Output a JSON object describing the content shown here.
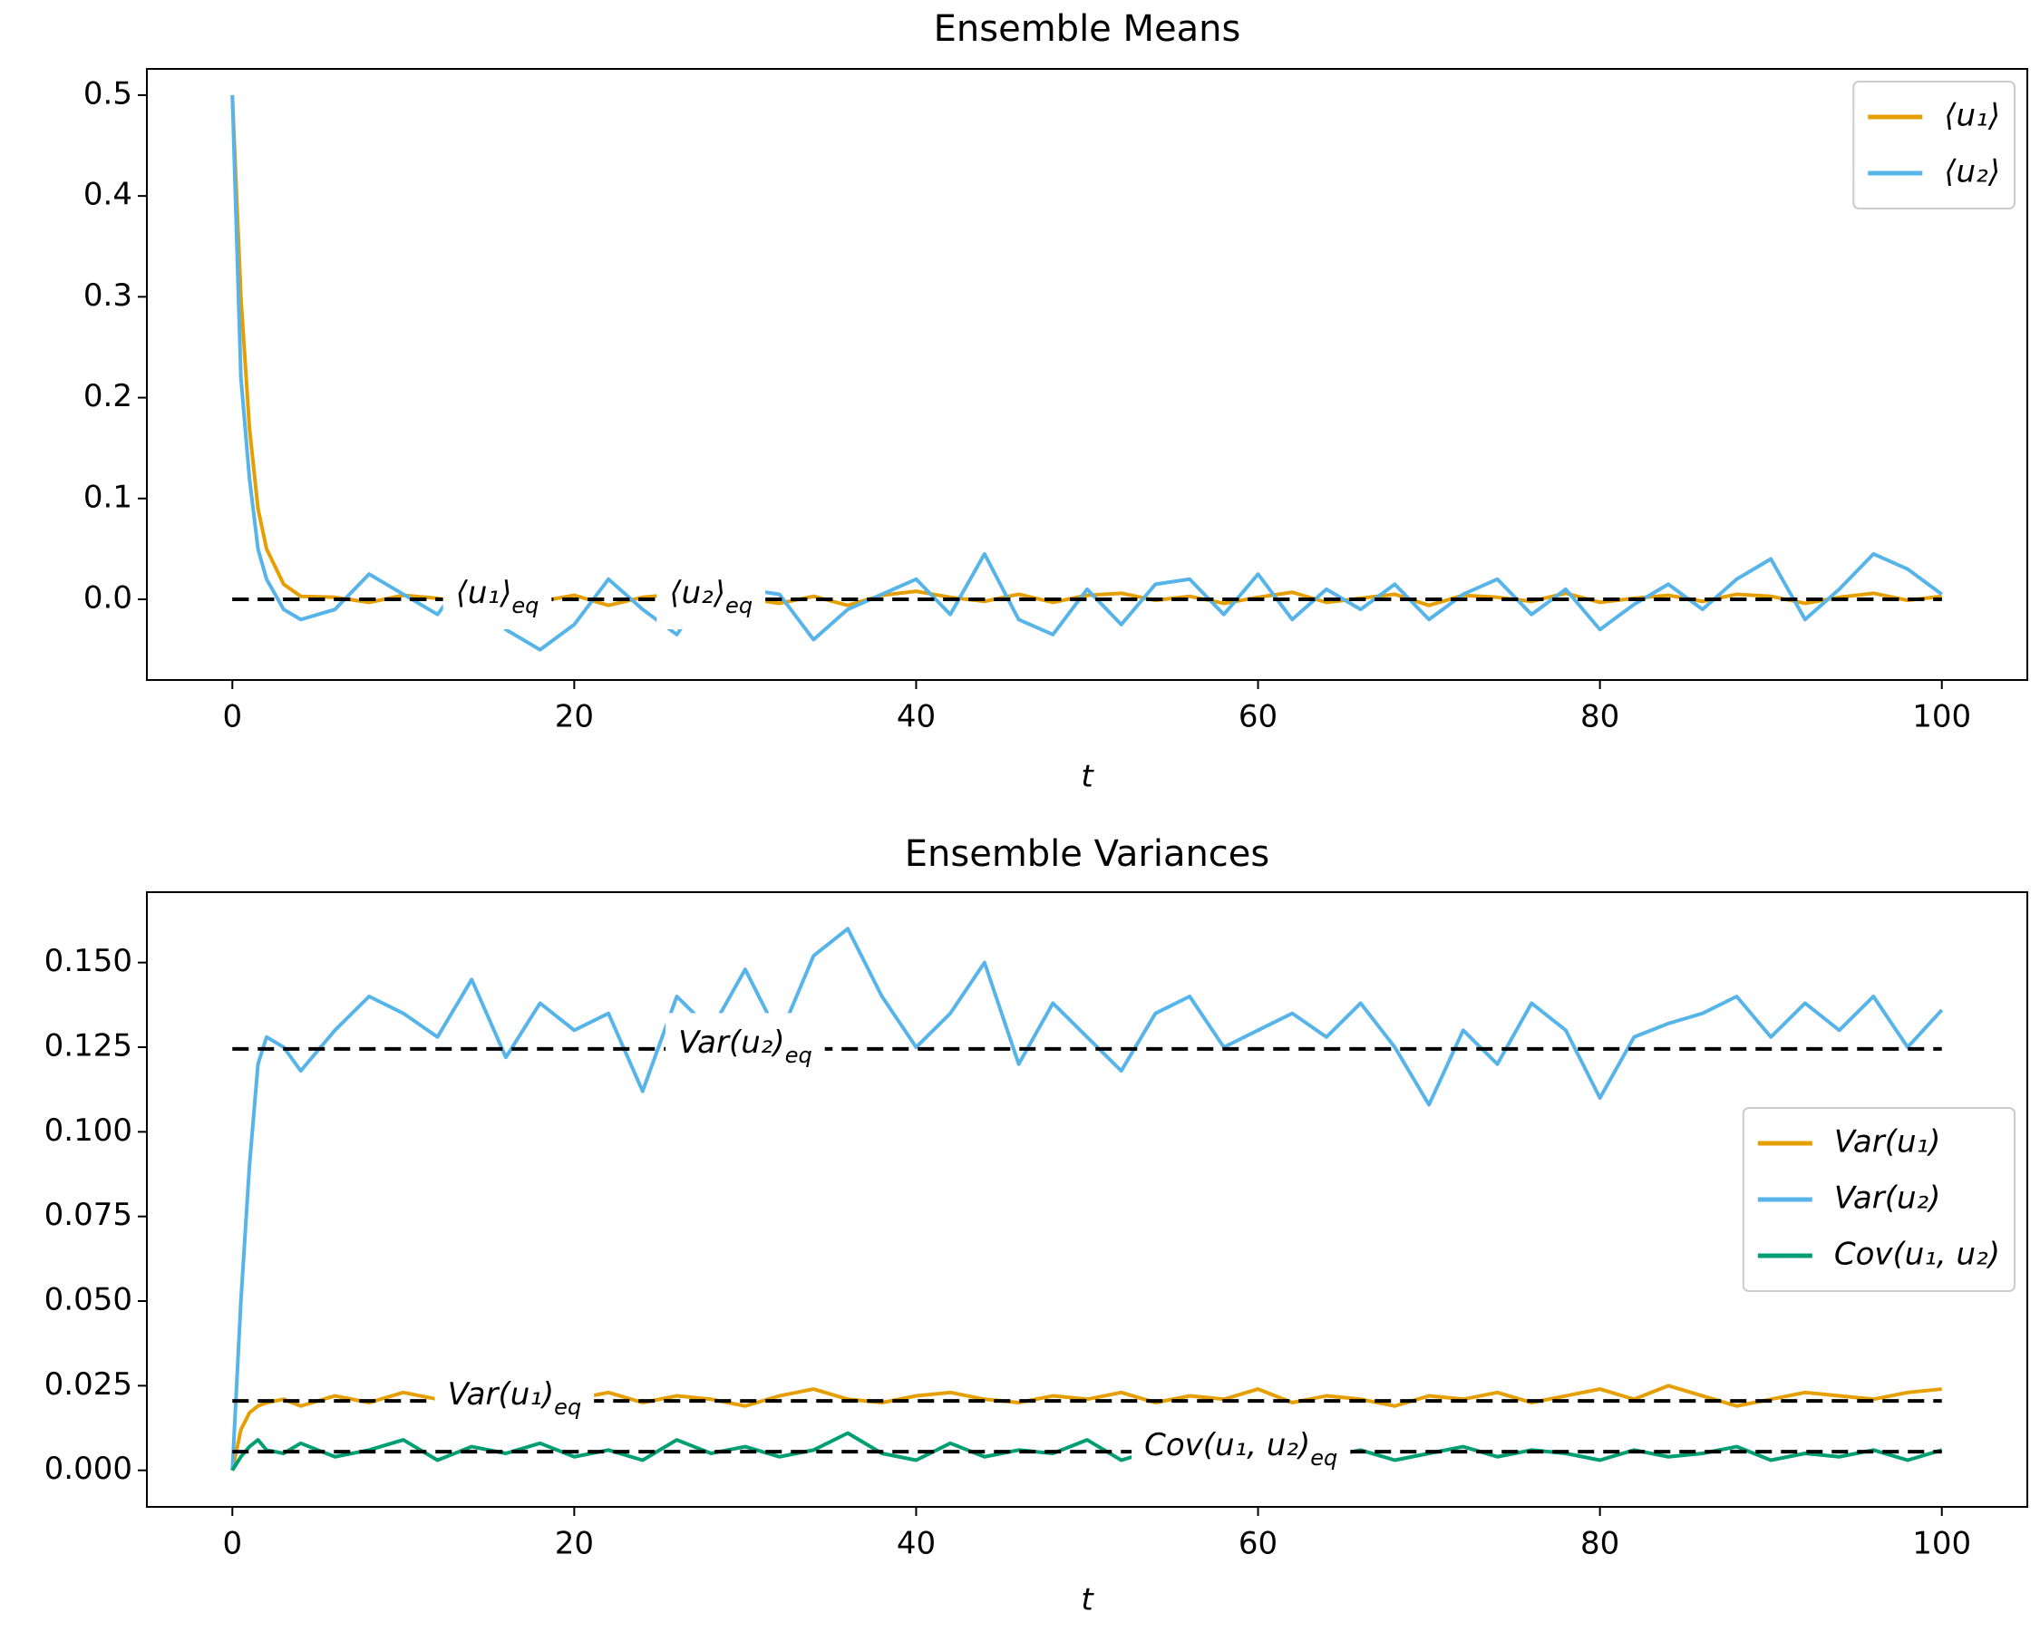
{
  "chart_data": [
    {
      "type": "line",
      "title": "Ensemble Means",
      "x_label": "t",
      "x": [
        0,
        0.5,
        1,
        1.5,
        2,
        3,
        4,
        6,
        8,
        10,
        12,
        14,
        16,
        18,
        20,
        22,
        24,
        26,
        28,
        30,
        32,
        34,
        36,
        38,
        40,
        42,
        44,
        46,
        48,
        50,
        52,
        54,
        56,
        58,
        60,
        62,
        64,
        66,
        68,
        70,
        72,
        74,
        76,
        78,
        80,
        82,
        84,
        86,
        88,
        90,
        92,
        94,
        96,
        98,
        100
      ],
      "series": [
        {
          "name": "⟨u₁⟩",
          "color": "#e69f00",
          "values": [
            0.5,
            0.3,
            0.17,
            0.09,
            0.05,
            0.015,
            0.003,
            0.002,
            -0.003,
            0.004,
            0.001,
            -0.005,
            0.003,
            -0.002,
            0.004,
            -0.006,
            0.002,
            0.005,
            -0.003,
            0.001,
            -0.004,
            0.003,
            -0.006,
            0.004,
            0.008,
            0.002,
            -0.002,
            0.005,
            -0.003,
            0.004,
            0.006,
            -0.001,
            0.003,
            -0.004,
            0.002,
            0.007,
            -0.003,
            0.001,
            0.005,
            -0.006,
            0.004,
            0.002,
            -0.002,
            0.006,
            -0.003,
            0.001,
            0.004,
            -0.002,
            0.005,
            0.003,
            -0.004,
            0.002,
            0.006,
            -0.001,
            0.003
          ]
        },
        {
          "name": "⟨u₂⟩",
          "color": "#56b4e9",
          "values": [
            0.5,
            0.22,
            0.12,
            0.05,
            0.02,
            -0.01,
            -0.02,
            -0.01,
            0.025,
            0.005,
            -0.015,
            0.03,
            -0.03,
            -0.05,
            -0.025,
            0.02,
            -0.01,
            -0.035,
            0.015,
            0.01,
            0.005,
            -0.04,
            -0.01,
            0.005,
            0.02,
            -0.015,
            0.045,
            -0.02,
            -0.035,
            0.01,
            -0.025,
            0.015,
            0.02,
            -0.015,
            0.025,
            -0.02,
            0.01,
            -0.01,
            0.015,
            -0.02,
            0.005,
            0.02,
            -0.015,
            0.01,
            -0.03,
            -0.005,
            0.015,
            -0.01,
            0.02,
            0.04,
            -0.02,
            0.01,
            0.045,
            0.03,
            0.005
          ]
        }
      ],
      "reference_lines": [
        {
          "value": 0,
          "label": "⟨u₁⟩",
          "label_sub": "eq"
        },
        {
          "value": 0,
          "label": "⟨u₂⟩",
          "label_sub": "eq"
        }
      ],
      "xlim": [
        -5,
        105
      ],
      "ylim": [
        -0.08,
        0.526
      ],
      "xticks": [
        0,
        20,
        40,
        60,
        80,
        100
      ],
      "yticks": [
        {
          "value": 0,
          "label": "0.0"
        },
        0.1,
        0.2,
        0.3,
        0.4,
        0.5
      ],
      "legend_loc": "upper right"
    },
    {
      "type": "line",
      "title": "Ensemble Variances",
      "x_label": "t",
      "x": [
        0,
        0.5,
        1,
        1.5,
        2,
        3,
        4,
        6,
        8,
        10,
        12,
        14,
        16,
        18,
        20,
        22,
        24,
        26,
        28,
        30,
        32,
        34,
        36,
        38,
        40,
        42,
        44,
        46,
        48,
        50,
        52,
        54,
        56,
        58,
        60,
        62,
        64,
        66,
        68,
        70,
        72,
        74,
        76,
        78,
        80,
        82,
        84,
        86,
        88,
        90,
        92,
        94,
        96,
        98,
        100
      ],
      "series": [
        {
          "name": "Var(u₁)",
          "color": "#e69f00",
          "values": [
            0,
            0.012,
            0.017,
            0.019,
            0.02,
            0.021,
            0.019,
            0.022,
            0.02,
            0.023,
            0.021,
            0.02,
            0.022,
            0.019,
            0.021,
            0.023,
            0.02,
            0.022,
            0.021,
            0.019,
            0.022,
            0.024,
            0.021,
            0.02,
            0.022,
            0.023,
            0.021,
            0.02,
            0.022,
            0.021,
            0.023,
            0.02,
            0.022,
            0.021,
            0.024,
            0.02,
            0.022,
            0.021,
            0.019,
            0.022,
            0.021,
            0.023,
            0.02,
            0.022,
            0.024,
            0.021,
            0.025,
            0.022,
            0.019,
            0.021,
            0.023,
            0.022,
            0.021,
            0.023,
            0.024
          ]
        },
        {
          "name": "Var(u₂)",
          "color": "#56b4e9",
          "values": [
            0,
            0.05,
            0.09,
            0.12,
            0.128,
            0.125,
            0.118,
            0.13,
            0.14,
            0.135,
            0.128,
            0.145,
            0.122,
            0.138,
            0.13,
            0.135,
            0.112,
            0.14,
            0.13,
            0.148,
            0.128,
            0.152,
            0.16,
            0.14,
            0.125,
            0.135,
            0.15,
            0.12,
            0.138,
            0.128,
            0.118,
            0.135,
            0.14,
            0.125,
            0.13,
            0.135,
            0.128,
            0.138,
            0.125,
            0.108,
            0.13,
            0.12,
            0.138,
            0.13,
            0.11,
            0.128,
            0.132,
            0.135,
            0.14,
            0.128,
            0.138,
            0.13,
            0.14,
            0.125,
            0.136
          ]
        },
        {
          "name": "Cov(u₁,  u₂)",
          "color": "#009e73",
          "values": [
            0,
            0.004,
            0.007,
            0.009,
            0.006,
            0.005,
            0.008,
            0.004,
            0.006,
            0.009,
            0.003,
            0.007,
            0.005,
            0.008,
            0.004,
            0.006,
            0.003,
            0.009,
            0.005,
            0.007,
            0.004,
            0.006,
            0.011,
            0.005,
            0.003,
            0.008,
            0.004,
            0.006,
            0.005,
            0.009,
            0.003,
            0.006,
            0.004,
            0.007,
            0.005,
            0.008,
            0.004,
            0.006,
            0.003,
            0.005,
            0.007,
            0.004,
            0.006,
            0.005,
            0.003,
            0.006,
            0.004,
            0.005,
            0.007,
            0.003,
            0.005,
            0.004,
            0.006,
            0.003,
            0.006
          ]
        }
      ],
      "reference_lines": [
        {
          "value": 0.0205,
          "label": "Var(u₁)",
          "label_sub": "eq"
        },
        {
          "value": 0.1245,
          "label": "Var(u₂)",
          "label_sub": "eq"
        },
        {
          "value": 0.0055,
          "label": "Cov(u₁,  u₂)",
          "label_sub": "eq"
        }
      ],
      "xlim": [
        -5,
        105
      ],
      "ylim": [
        -0.0108,
        0.1708
      ],
      "xticks": [
        0,
        20,
        40,
        60,
        80,
        100
      ],
      "yticks": [
        {
          "value": 0,
          "label": "0.000"
        },
        {
          "value": 0.025,
          "label": "0.025"
        },
        {
          "value": 0.05,
          "label": "0.050"
        },
        {
          "value": 0.075,
          "label": "0.075"
        },
        {
          "value": 0.1,
          "label": "0.100"
        },
        {
          "value": 0.125,
          "label": "0.125"
        },
        {
          "value": 0.15,
          "label": "0.150"
        }
      ],
      "legend_loc": "center right"
    }
  ]
}
